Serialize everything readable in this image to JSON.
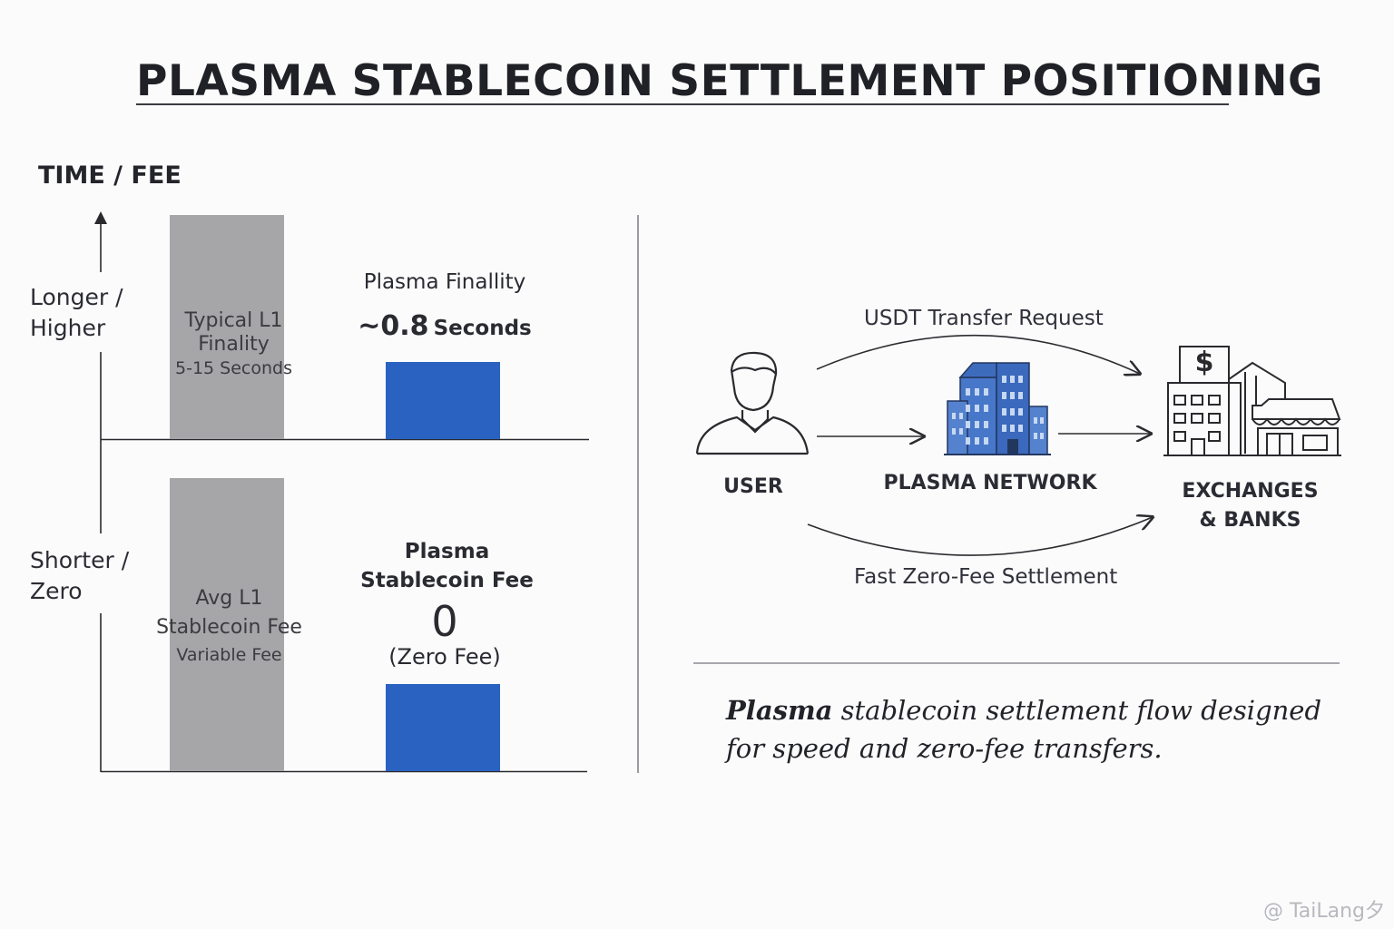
{
  "title": "PLASMA STABLECOIN SETTLEMENT POSITIONING",
  "axis": {
    "title": "TIME / FEE",
    "top_label_1": "Longer /",
    "top_label_2": "Higher",
    "bottom_label_1": "Shorter /",
    "bottom_label_2": "Zero"
  },
  "chart_data": [
    {
      "type": "bar",
      "ylabel": "TIME / FEE",
      "categories": [
        "Typical L1 Finality",
        "Plasma Finallity"
      ],
      "values": [
        "5-15 Seconds",
        "~0.8 Seconds"
      ],
      "bar_labels": {
        "l1_line1": "Typical L1",
        "l1_line2": "Finality",
        "l1_value": "5-15 Seconds",
        "plasma_line1": "Plasma Finallity",
        "plasma_value": "~0.8",
        "plasma_unit": "Seconds"
      },
      "relative_height": [
        1.0,
        0.35
      ],
      "colors": [
        "#a6a6a9",
        "#2a62c1"
      ]
    },
    {
      "type": "bar",
      "ylabel": "TIME / FEE",
      "categories": [
        "Avg L1 Stablecoin Fee",
        "Plasma Stablecoin Fee"
      ],
      "values": [
        "Variable Fee",
        "0"
      ],
      "bar_labels": {
        "l1_line1": "Avg L1",
        "l1_line2": "Stablecoin Fee",
        "l1_value": "Variable Fee",
        "plasma_line1": "Plasma",
        "plasma_line2": "Stablecoin Fee",
        "plasma_value": "0",
        "plasma_note": "(Zero Fee)"
      },
      "relative_height": [
        1.0,
        0.3
      ],
      "colors": [
        "#a6a6a9",
        "#2a62c1"
      ]
    }
  ],
  "flow": {
    "top_arc_label": "USDT Transfer Request",
    "bottom_arc_label": "Fast Zero-Fee Settlement",
    "nodes": {
      "user": "USER",
      "network": "PLASMA NETWORK",
      "dest_line1": "EXCHANGES",
      "dest_line2": "& BANKS"
    },
    "dollar_sign": "$",
    "icons": [
      "user-icon",
      "building-icon",
      "bank-store-icon"
    ]
  },
  "caption": {
    "bold": "Plasma",
    "rest_line1": " stablecoin settlement flow designed",
    "line2": "for speed and zero-fee transfers."
  },
  "watermark": "@ TaiLang夕"
}
